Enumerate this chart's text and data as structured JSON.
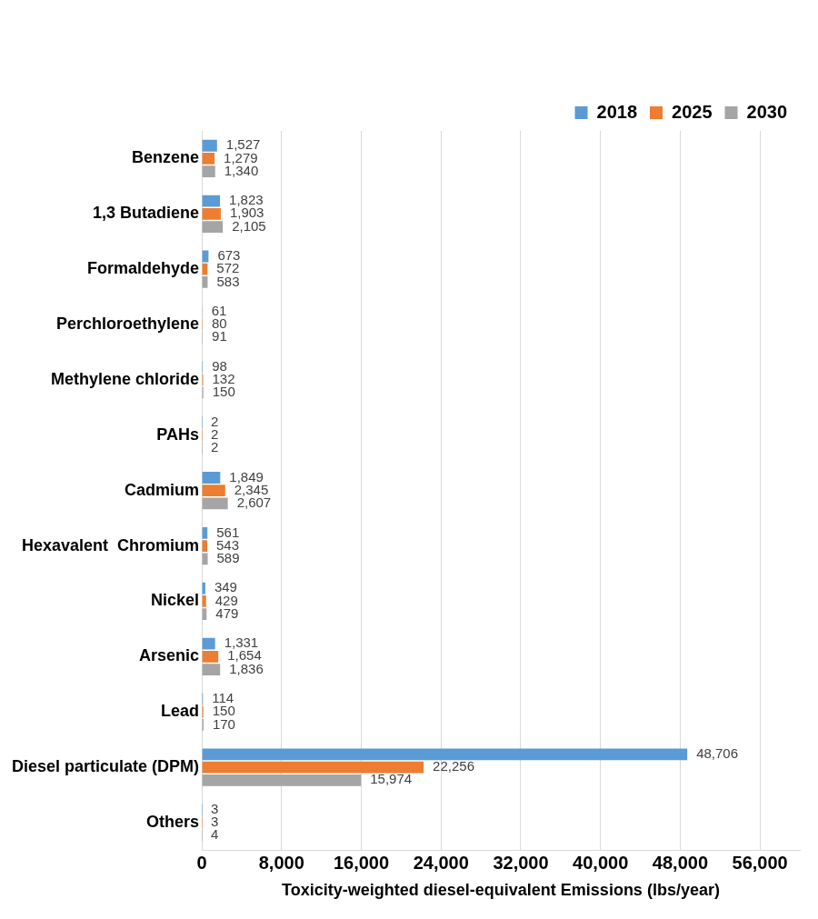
{
  "chart_data": {
    "type": "bar",
    "orientation": "horizontal",
    "xlabel": "Toxicity-weighted diesel-equivalent Emissions (lbs/year)",
    "categories": [
      "Benzene",
      "1,3 Butadiene",
      "Formaldehyde",
      "Perchloroethylene",
      "Methylene chloride",
      "PAHs",
      "Cadmium",
      "Hexavalent  Chromium",
      "Nickel",
      "Arsenic",
      "Lead",
      "Diesel particulate (DPM)",
      "Others"
    ],
    "series": [
      {
        "name": "2018",
        "color": "#5b9bd5",
        "values": [
          1527,
          1823,
          673,
          61,
          98,
          2,
          1849,
          561,
          349,
          1331,
          114,
          48706,
          3
        ],
        "value_labels": [
          "1,527",
          "1,823",
          "673",
          "61",
          "98",
          "2",
          "1,849",
          "561",
          "349",
          "1,331",
          "114",
          "48,706",
          "3"
        ]
      },
      {
        "name": "2025",
        "color": "#ed7d31",
        "values": [
          1279,
          1903,
          572,
          80,
          132,
          2,
          2345,
          543,
          429,
          1654,
          150,
          22256,
          3
        ],
        "value_labels": [
          "1,279",
          "1,903",
          "572",
          "80",
          "132",
          "2",
          "2,345",
          "543",
          "429",
          "1,654",
          "150",
          "22,256",
          "3"
        ]
      },
      {
        "name": "2030",
        "color": "#a5a5a5",
        "values": [
          1340,
          2105,
          583,
          91,
          150,
          2,
          2607,
          589,
          479,
          1836,
          170,
          15974,
          4
        ],
        "value_labels": [
          "1,340",
          "2,105",
          "583",
          "91",
          "150",
          "2",
          "2,607",
          "589",
          "479",
          "1,836",
          "170",
          "15,974",
          "4"
        ]
      }
    ],
    "xlim": [
      0,
      60000
    ],
    "xticks": [
      0,
      {
        "value": 8000,
        "label": "8,000"
      },
      {
        "value": 16000,
        "label": "16,000"
      },
      {
        "value": 24000,
        "label": "24,000"
      },
      {
        "value": 32000,
        "label": "32,000"
      },
      {
        "value": 40000,
        "label": "40,000"
      },
      {
        "value": 48000,
        "label": "48,000"
      },
      {
        "value": 56000,
        "label": "56,000"
      }
    ],
    "grid": "x",
    "legend": "top right"
  }
}
